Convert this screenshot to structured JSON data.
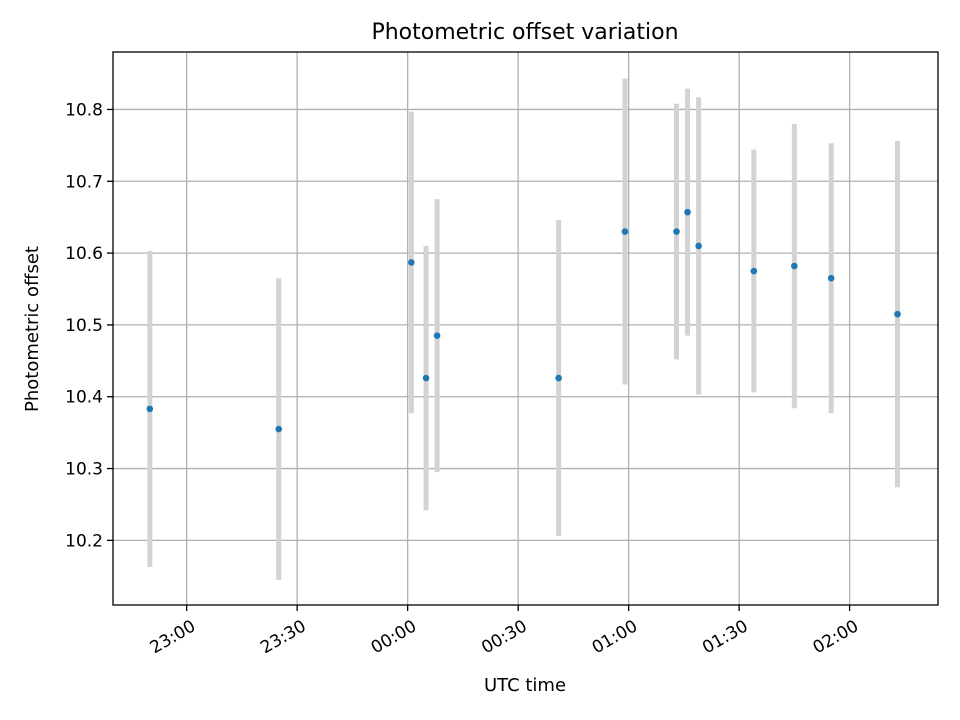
{
  "chart_data": {
    "type": "scatter",
    "title": "Photometric offset variation",
    "xlabel": "UTC time",
    "ylabel": "Photometric offset",
    "x_axis_kind": "time",
    "x_ticks": [
      "23:00",
      "23:30",
      "00:00",
      "00:30",
      "01:00",
      "01:30",
      "02:00"
    ],
    "y_ticks": [
      10.2,
      10.3,
      10.4,
      10.5,
      10.6,
      10.7,
      10.8
    ],
    "xlim": [
      "22:40",
      "02:24"
    ],
    "ylim": [
      10.11,
      10.88
    ],
    "grid": true,
    "colors": {
      "point": "#1f77b4",
      "errorbar": "#d3d3d3"
    },
    "series": [
      {
        "points": [
          {
            "x": "22:50",
            "y": 10.383,
            "err": 0.22
          },
          {
            "x": "23:25",
            "y": 10.355,
            "err": 0.21
          },
          {
            "x": "00:01",
            "y": 10.587,
            "err": 0.21
          },
          {
            "x": "00:05",
            "y": 10.426,
            "err": 0.184
          },
          {
            "x": "00:08",
            "y": 10.485,
            "err": 0.19
          },
          {
            "x": "00:41",
            "y": 10.426,
            "err": 0.22
          },
          {
            "x": "00:59",
            "y": 10.63,
            "err": 0.213
          },
          {
            "x": "01:13",
            "y": 10.63,
            "err": 0.178
          },
          {
            "x": "01:16",
            "y": 10.657,
            "err": 0.172
          },
          {
            "x": "01:19",
            "y": 10.61,
            "err": 0.207
          },
          {
            "x": "01:34",
            "y": 10.575,
            "err": 0.169
          },
          {
            "x": "01:45",
            "y": 10.582,
            "err": 0.198
          },
          {
            "x": "01:55",
            "y": 10.565,
            "err": 0.188
          },
          {
            "x": "02:13",
            "y": 10.515,
            "err": 0.241
          }
        ]
      }
    ]
  }
}
